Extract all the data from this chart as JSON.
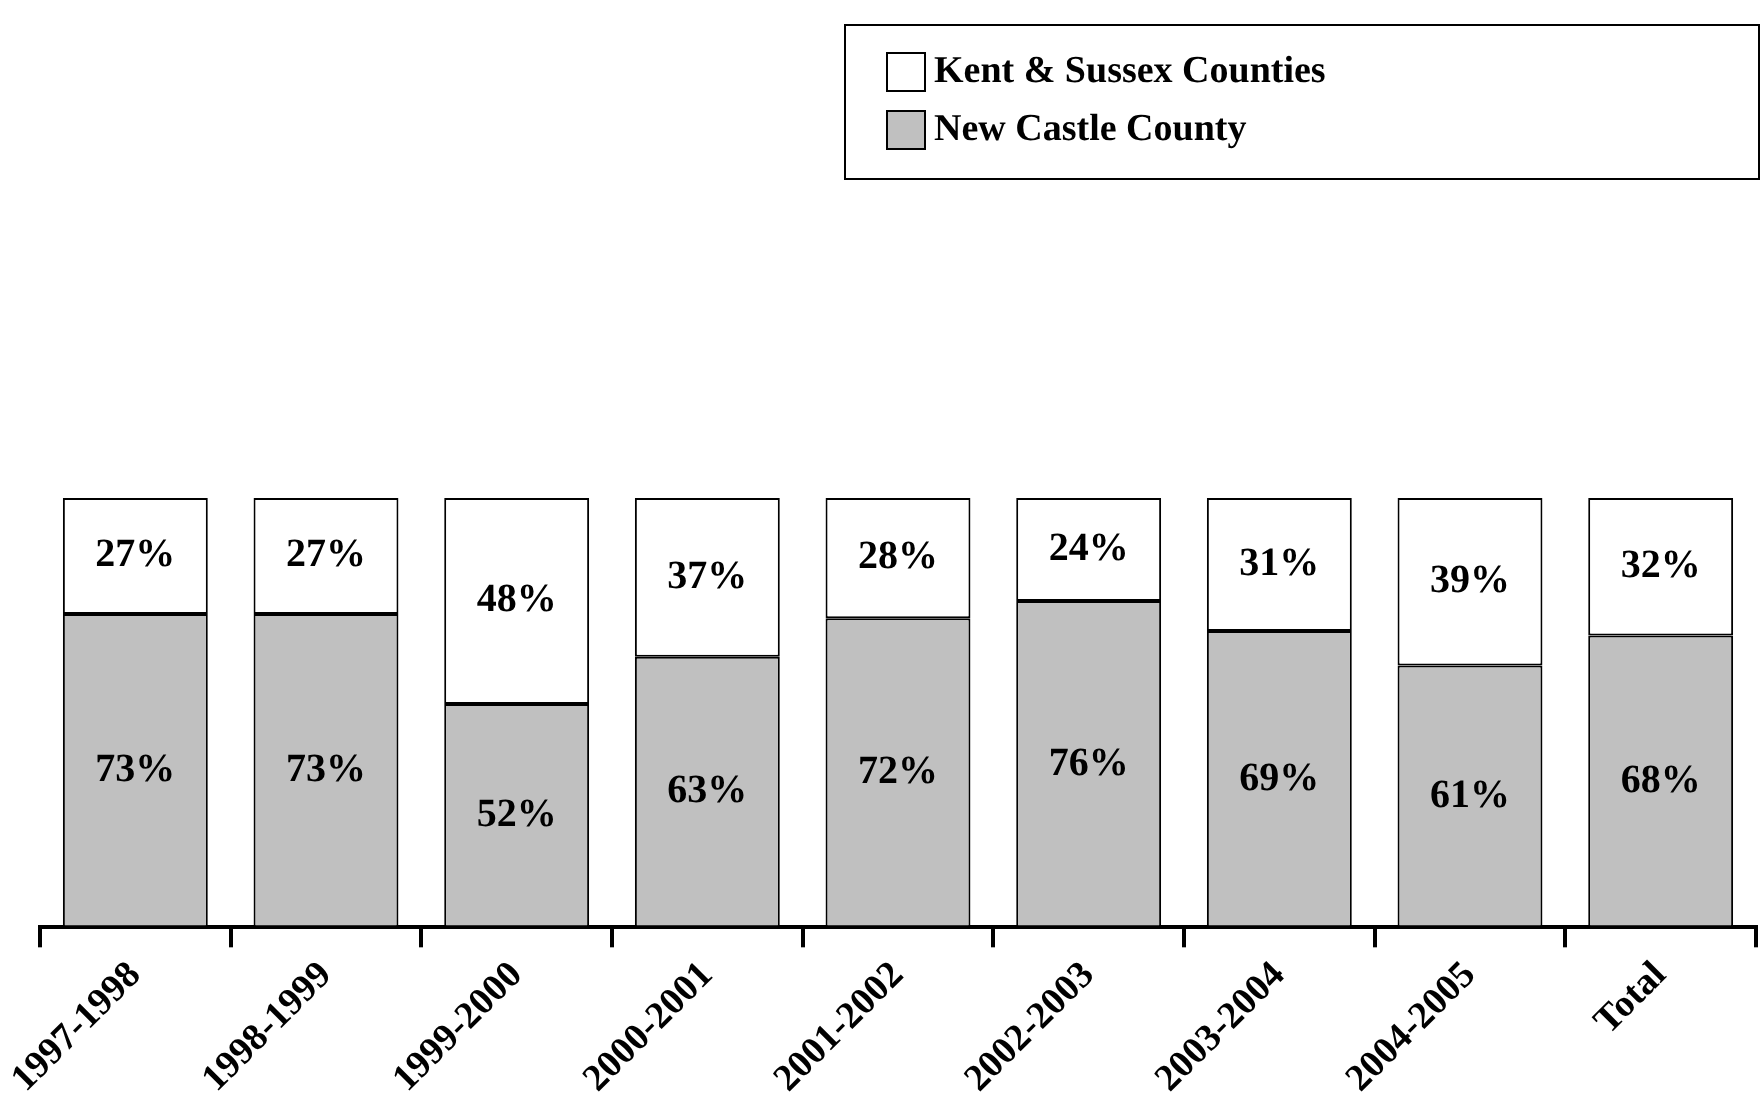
{
  "chart_data": {
    "type": "bar",
    "stacked": true,
    "legend": "top right",
    "categories": [
      "1997-1998",
      "1998-1999",
      "1999-2000",
      "2000-2001",
      "2001-2002",
      "2002-2003",
      "2003-2004",
      "2004-2005",
      "Total"
    ],
    "series": [
      {
        "name": "New Castle County",
        "color": "#c0c0c0",
        "values": [
          73,
          73,
          52,
          63,
          72,
          76,
          69,
          61,
          68
        ],
        "value_labels": [
          "73%",
          "73%",
          "52%",
          "63%",
          "72%",
          "76%",
          "69%",
          "61%",
          "68%"
        ]
      },
      {
        "name": "Kent & Sussex Counties",
        "color": "#ffffff",
        "values": [
          27,
          27,
          48,
          37,
          28,
          24,
          31,
          39,
          32
        ],
        "value_labels": [
          "27%",
          "27%",
          "48%",
          "37%",
          "28%",
          "24%",
          "31%",
          "39%",
          "32%"
        ]
      }
    ]
  }
}
